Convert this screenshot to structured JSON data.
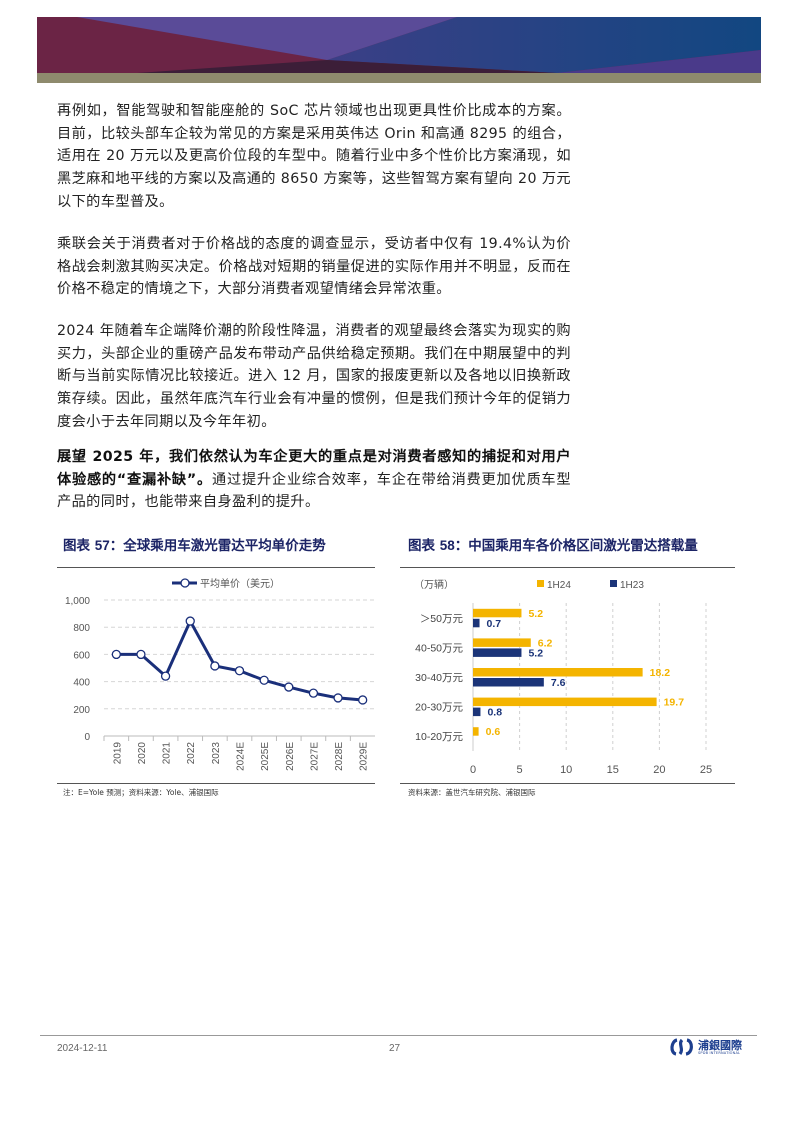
{
  "paragraphs": [
    {
      "text": "再例如，智能驾驶和智能座舱的 SoC 芯片领域也出现更具性价比成本的方案。目前，比较头部车企较为常见的方案是采用英伟达 Orin 和高通 8295 的组合，适用在 20 万元以及更高价位段的车型中。随着行业中多个性价比方案涌现，如黑芝麻和地平线的方案以及高通的 8650 方案等，这些智驾方案有望向 20 万元以下的车型普及。"
    },
    {
      "text": "乘联会关于消费者对于价格战的态度的调查显示，受访者中仅有 19.4%认为价格战会刺激其购买决定。价格战对短期的销量促进的实际作用并不明显，反而在价格不稳定的情境之下，大部分消费者观望情绪会异常浓重。"
    },
    {
      "text": "2024 年随着车企端降价潮的阶段性降温，消费者的观望最终会落实为现实的购买力，头部企业的重磅产品发布带动产品供给稳定预期。我们在中期展望中的判断与当前实际情况比较接近。进入 12 月，国家的报废更新以及各地以旧换新政策存续。因此，虽然年底汽车行业会有冲量的惯例，但是我们预计今年的促销力度会小于去年同期以及今年年初。"
    },
    {
      "bold": "展望 2025 年，我们依然认为车企更大的重点是对消费者感知的捕捉和对用户体验感的“查漏补缺”。",
      "text": "通过提升企业综合效率，车企在带给消费更加优质车型产品的同时，也能带来自身盈利的提升。"
    }
  ],
  "chart_data": [
    {
      "type": "line",
      "title_prefix": "图表 ",
      "title_num": "57",
      "title": "：全球乘用车激光雷达平均单价走势",
      "categories": [
        "2019",
        "2020",
        "2021",
        "2022",
        "2023",
        "2024E",
        "2025E",
        "2026E",
        "2027E",
        "2028E",
        "2029E"
      ],
      "series": [
        {
          "name": "平均单价（美元）",
          "values": [
            600,
            600,
            440,
            845,
            515,
            480,
            410,
            360,
            315,
            280,
            265
          ]
        }
      ],
      "ylim": [
        0,
        1000
      ],
      "yticks": [
        "0",
        "200",
        "400",
        "600",
        "800",
        "1,000"
      ],
      "grid": true,
      "legend": "top-center",
      "color": "#1a2f7a",
      "note": "注：E=Yole 预测；资料来源：Yole、浦银国际"
    },
    {
      "type": "bar",
      "orientation": "horizontal",
      "title_prefix": "图表 ",
      "title_num": "58",
      "title": "：中国乘用车各价格区间激光雷达搭载量",
      "unit": "（万辆）",
      "categories": [
        "＞50万元",
        "40-50万元",
        "30-40万元",
        "20-30万元",
        "10-20万元"
      ],
      "series": [
        {
          "name": "1H24",
          "values": [
            5.2,
            6.2,
            18.2,
            19.7,
            0.6
          ],
          "color": "#f4b400"
        },
        {
          "name": "1H23",
          "values": [
            0.7,
            5.2,
            7.6,
            0.8,
            null
          ],
          "color": "#1b3478"
        }
      ],
      "xlim": [
        0,
        25
      ],
      "xticks": [
        "0",
        "5",
        "10",
        "15",
        "20",
        "25"
      ],
      "grid": true,
      "legend": "top",
      "note": "资料来源：盖世汽车研究院、浦银国际"
    }
  ],
  "footer": {
    "date": "2024-12-11",
    "page": "27",
    "logo_cn": "浦銀國際",
    "logo_en": "SPDB INTERNATIONAL"
  }
}
